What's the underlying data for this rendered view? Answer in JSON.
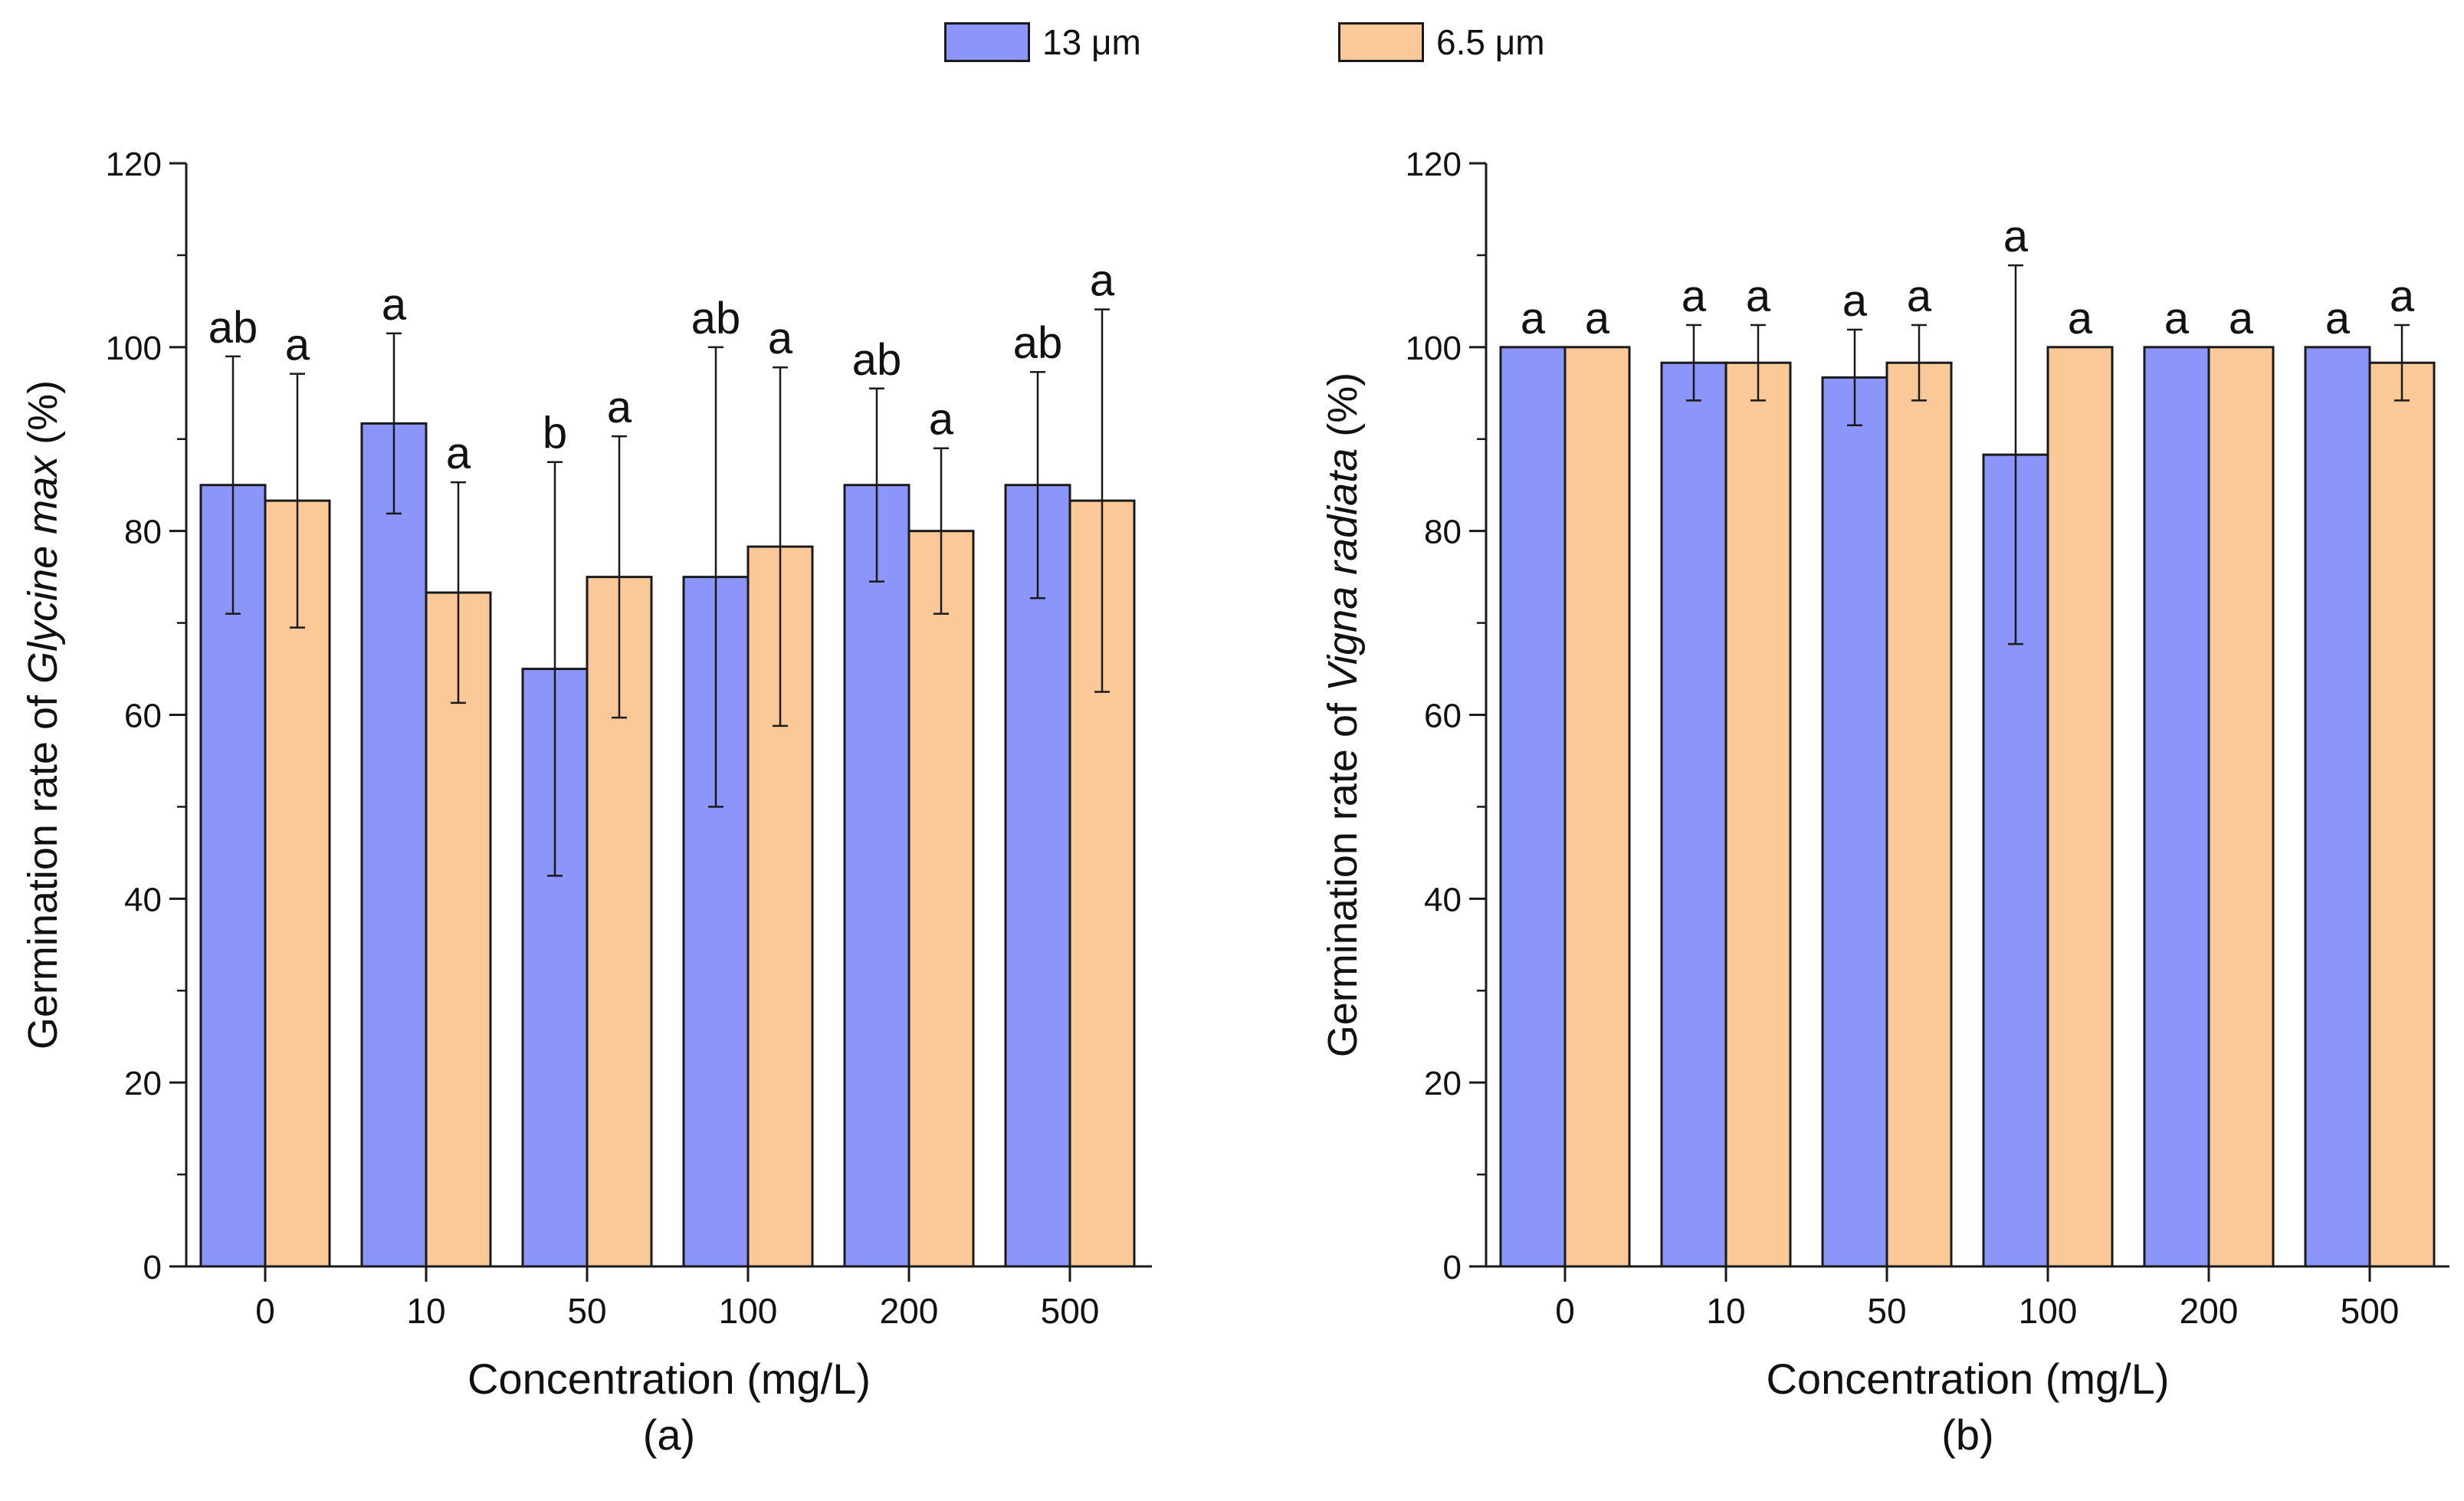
{
  "legend": {
    "series_a": {
      "label": "13 μm",
      "color": "#8c96fa"
    },
    "series_b": {
      "label": "6.5 μm",
      "color": "#fbc998"
    }
  },
  "chart_data": [
    {
      "type": "bar",
      "panel_label": "(a)",
      "ylabel_prefix": "Germination rate of ",
      "ylabel_species": "Glycine max",
      "ylabel_suffix": " (%)",
      "xlabel": "Concentration (mg/L)",
      "categories": [
        "0",
        "10",
        "50",
        "100",
        "200",
        "500"
      ],
      "ylim": [
        0,
        120
      ],
      "yticks": [
        "0",
        "20",
        "40",
        "60",
        "80",
        "100",
        "120"
      ],
      "series": [
        {
          "name": "13 μm",
          "color": "#8c96fa",
          "values": [
            85,
            91.7,
            65,
            75,
            85,
            85
          ],
          "errors": [
            14,
            9.8,
            22.5,
            25,
            10.5,
            12.3
          ],
          "letters": [
            "ab",
            "a",
            "b",
            "ab",
            "ab",
            "ab"
          ]
        },
        {
          "name": "6.5 μm",
          "color": "#fbc998",
          "values": [
            83.3,
            73.3,
            75,
            78.3,
            80,
            83.3
          ],
          "errors": [
            13.8,
            12,
            15.3,
            19.5,
            9,
            20.8
          ],
          "letters": [
            "a",
            "a",
            "a",
            "a",
            "a",
            "a"
          ]
        }
      ]
    },
    {
      "type": "bar",
      "panel_label": "(b)",
      "ylabel_prefix": "Germination rate of ",
      "ylabel_species": "Vigna radiata",
      "ylabel_suffix": " (%)",
      "xlabel": "Concentration (mg/L)",
      "categories": [
        "0",
        "10",
        "50",
        "100",
        "200",
        "500"
      ],
      "ylim": [
        0,
        120
      ],
      "yticks": [
        "0",
        "20",
        "40",
        "60",
        "80",
        "100",
        "120"
      ],
      "series": [
        {
          "name": "13 μm",
          "color": "#8c96fa",
          "values": [
            100,
            98.3,
            96.7,
            88.3,
            100,
            100
          ],
          "errors": [
            0,
            4.1,
            5.2,
            20.6,
            0,
            0
          ],
          "letters": [
            "a",
            "a",
            "a",
            "a",
            "a",
            "a"
          ]
        },
        {
          "name": "6.5 μm",
          "color": "#fbc998",
          "values": [
            100,
            98.3,
            98.3,
            100,
            100,
            98.3
          ],
          "errors": [
            0,
            4.1,
            4.1,
            0,
            0,
            4.1
          ],
          "letters": [
            "a",
            "a",
            "a",
            "a",
            "a",
            "a"
          ]
        }
      ]
    }
  ]
}
